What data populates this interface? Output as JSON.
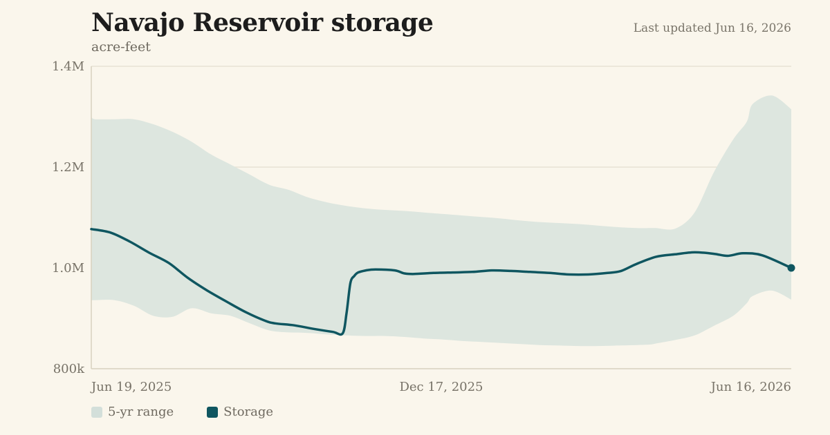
{
  "header": {
    "title": "Navajo Reservoir storage",
    "subtitle": "acre-feet",
    "updated": "Last updated Jun 16, 2026"
  },
  "colors": {
    "band": "#dde6df",
    "line": "#0f5660",
    "grid": "#e8e2d3",
    "axis": "#d8d1bf",
    "background": "#faf6ec"
  },
  "legend": [
    {
      "label": "5-yr range",
      "color": "#d3dfda"
    },
    {
      "label": "Storage",
      "color": "#0f5660"
    }
  ],
  "chart_data": {
    "type": "area",
    "title": "Navajo Reservoir storage",
    "subtitle": "acre-feet",
    "ylim": [
      800000,
      1400000
    ],
    "yticks": [
      800000,
      1000000,
      1200000,
      1400000
    ],
    "ytick_labels": [
      "800k",
      "1.0M",
      "1.2M",
      "1.4M"
    ],
    "xlim": [
      "2025-06-19",
      "2026-06-16"
    ],
    "xtick_labels": [
      "Jun 19, 2025",
      "Dec 17, 2025",
      "Jun 16, 2026"
    ],
    "grid": true,
    "legend_position": "bottom-left",
    "series": [
      {
        "name": "5-yr range",
        "dates": [
          "2025-06-19",
          "2025-06-21",
          "2025-07-01",
          "2025-07-11",
          "2025-07-21",
          "2025-07-31",
          "2025-08-10",
          "2025-08-20",
          "2025-08-30",
          "2025-09-09",
          "2025-09-19",
          "2025-09-29",
          "2025-10-09",
          "2025-10-19",
          "2025-10-29",
          "2025-11-08",
          "2025-11-18",
          "2025-11-28",
          "2025-12-08",
          "2025-12-18",
          "2025-12-28",
          "2026-01-07",
          "2026-01-17",
          "2026-01-27",
          "2026-02-06",
          "2026-02-16",
          "2026-02-26",
          "2026-03-08",
          "2026-03-18",
          "2026-03-28",
          "2026-04-04",
          "2026-04-07",
          "2026-04-17",
          "2026-04-27",
          "2026-05-07",
          "2026-05-17",
          "2026-05-24",
          "2026-05-27",
          "2026-06-06",
          "2026-06-16"
        ],
        "high": [
          1300000,
          1295000,
          1295000,
          1295000,
          1285000,
          1270000,
          1250000,
          1225000,
          1205000,
          1185000,
          1165000,
          1155000,
          1140000,
          1130000,
          1123000,
          1118000,
          1115000,
          1113000,
          1110000,
          1107000,
          1104000,
          1101000,
          1098000,
          1094000,
          1091000,
          1089000,
          1087000,
          1084000,
          1081000,
          1079000,
          1079000,
          1079000,
          1078000,
          1110000,
          1190000,
          1255000,
          1290000,
          1325000,
          1342000,
          1315000
        ],
        "low": [
          936000,
          936000,
          936000,
          925000,
          905000,
          903000,
          920000,
          910000,
          905000,
          890000,
          876000,
          872000,
          871000,
          868000,
          866000,
          865000,
          865000,
          863000,
          860000,
          858000,
          855000,
          853000,
          851000,
          849000,
          847000,
          846000,
          845000,
          845000,
          846000,
          847000,
          848000,
          850000,
          857000,
          866000,
          885000,
          905000,
          930000,
          944000,
          955000,
          937000
        ]
      },
      {
        "name": "Storage",
        "dates": [
          "2025-06-19",
          "2025-06-29",
          "2025-07-09",
          "2025-07-19",
          "2025-07-29",
          "2025-08-08",
          "2025-08-18",
          "2025-08-28",
          "2025-09-07",
          "2025-09-17",
          "2025-09-22",
          "2025-10-02",
          "2025-10-12",
          "2025-10-22",
          "2025-10-27",
          "2025-10-29",
          "2025-10-31",
          "2025-11-02",
          "2025-11-04",
          "2025-11-08",
          "2025-11-13",
          "2025-11-23",
          "2025-11-28",
          "2025-12-03",
          "2025-12-13",
          "2025-12-23",
          "2026-01-02",
          "2026-01-12",
          "2026-01-22",
          "2026-02-01",
          "2026-02-11",
          "2026-02-21",
          "2026-03-03",
          "2026-03-13",
          "2026-03-20",
          "2026-03-28",
          "2026-04-07",
          "2026-04-17",
          "2026-04-27",
          "2026-05-07",
          "2026-05-14",
          "2026-05-22",
          "2026-06-01",
          "2026-06-16"
        ],
        "values": [
          1077000,
          1070000,
          1052000,
          1030000,
          1010000,
          980000,
          955000,
          933000,
          912000,
          895000,
          890000,
          886000,
          879000,
          873000,
          870000,
          910000,
          970000,
          984000,
          991000,
          995000,
          997000,
          995000,
          989000,
          988000,
          990000,
          991000,
          992000,
          995000,
          994000,
          992000,
          990000,
          987000,
          987000,
          990000,
          994000,
          1008000,
          1022000,
          1027000,
          1031000,
          1028000,
          1024000,
          1029000,
          1025000,
          1000000
        ]
      }
    ]
  }
}
